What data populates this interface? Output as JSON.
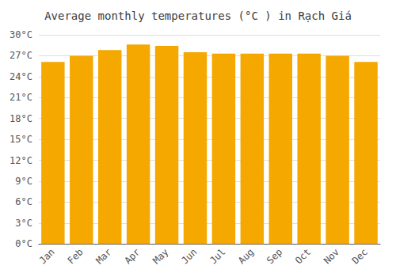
{
  "chart_data": {
    "type": "bar",
    "title": "Average monthly temperatures (°C ) in Rạch Giá",
    "categories": [
      "Jan",
      "Feb",
      "Mar",
      "Apr",
      "May",
      "Jun",
      "Jul",
      "Aug",
      "Sep",
      "Oct",
      "Nov",
      "Dec"
    ],
    "values": [
      26.1,
      27.0,
      27.8,
      28.6,
      28.4,
      27.5,
      27.3,
      27.3,
      27.3,
      27.3,
      27.0,
      26.1
    ],
    "color": "#F5A800",
    "ylim": [
      0,
      30
    ],
    "yticks": [
      {
        "value": 0,
        "label": "0°C"
      },
      {
        "value": 3,
        "label": "3°C"
      },
      {
        "value": 6,
        "label": "6°C"
      },
      {
        "value": 9,
        "label": "9°C"
      },
      {
        "value": 12,
        "label": "12°C"
      },
      {
        "value": 15,
        "label": "15°C"
      },
      {
        "value": 18,
        "label": "18°C"
      },
      {
        "value": 21,
        "label": "21°C"
      },
      {
        "value": 24,
        "label": "24°C"
      },
      {
        "value": 27,
        "label": "27°C"
      },
      {
        "value": 30,
        "label": "30°C"
      }
    ],
    "grid": true
  }
}
